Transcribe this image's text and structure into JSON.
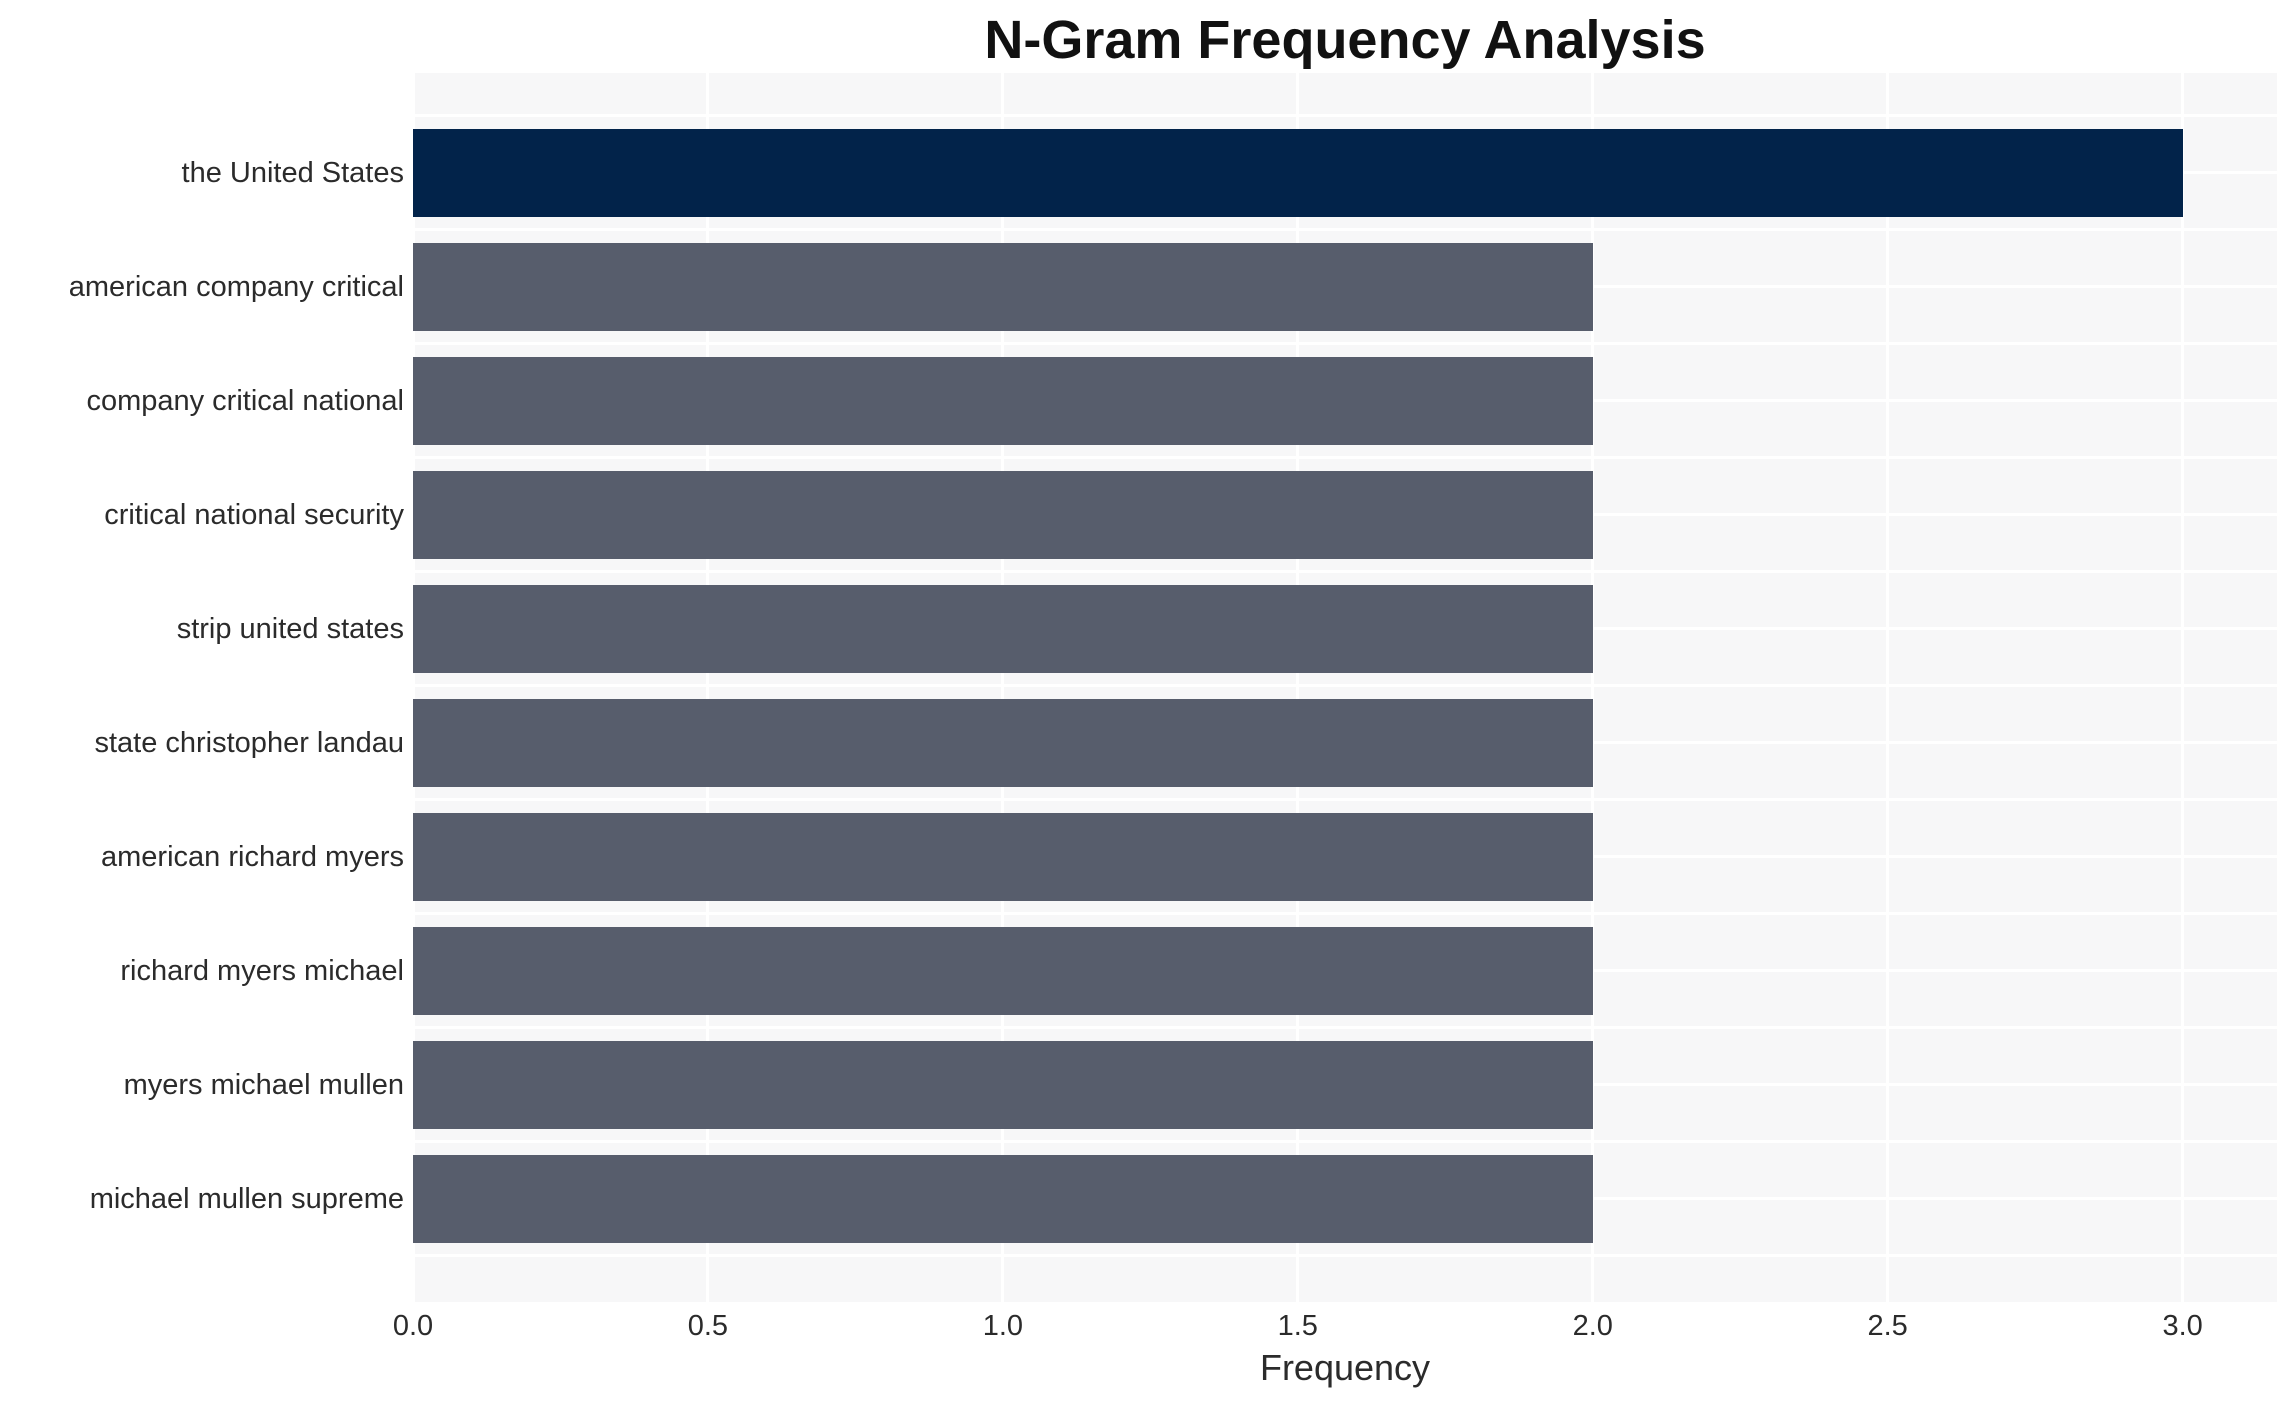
{
  "chart_data": {
    "type": "bar",
    "orientation": "horizontal",
    "title": "N-Gram Frequency Analysis",
    "xlabel": "Frequency",
    "ylabel": "",
    "categories": [
      "the United States",
      "american company critical",
      "company critical national",
      "critical national security",
      "strip united states",
      "state christopher landau",
      "american richard myers",
      "richard myers michael",
      "myers michael mullen",
      "michael mullen supreme"
    ],
    "values": [
      3,
      2,
      2,
      2,
      2,
      2,
      2,
      2,
      2,
      2
    ],
    "bar_colors": [
      "#02234a",
      "#575d6c",
      "#575d6c",
      "#575d6c",
      "#575d6c",
      "#575d6c",
      "#575d6c",
      "#575d6c",
      "#575d6c",
      "#575d6c"
    ],
    "x_tick_labels": [
      "0.0",
      "0.5",
      "1.0",
      "1.5",
      "2.0",
      "2.5",
      "3.0"
    ],
    "x_tick_values": [
      0,
      0.5,
      1,
      1.5,
      2,
      2.5,
      3
    ],
    "xlim": [
      0,
      3.16
    ],
    "grid": "on",
    "legend_position": "none",
    "colors": {
      "plot_background": "#f7f7f8",
      "grid_line": "#ffffff",
      "highlight_bar": "#02234a",
      "default_bar": "#575d6c",
      "axis_text": "#2b2b2b",
      "title_text": "#111111"
    }
  }
}
